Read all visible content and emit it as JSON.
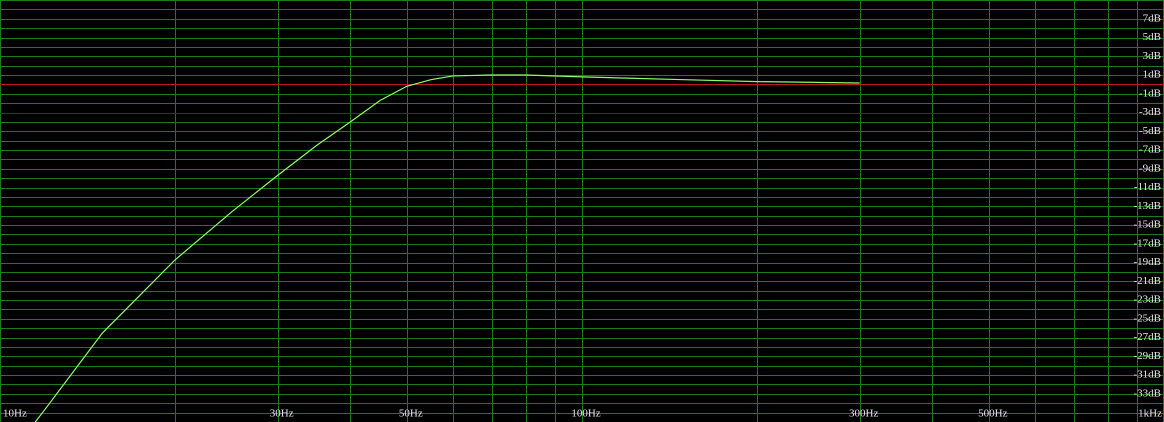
{
  "chart_data": {
    "type": "line",
    "xscale": "log",
    "xlim": [
      10,
      1000
    ],
    "ylim": [
      -36,
      9
    ],
    "xticks": [
      {
        "value": 10,
        "label": "10Hz"
      },
      {
        "value": 30,
        "label": "30Hz"
      },
      {
        "value": 50,
        "label": "50Hz"
      },
      {
        "value": 100,
        "label": "100Hz"
      },
      {
        "value": 300,
        "label": "300Hz"
      },
      {
        "value": 500,
        "label": "500Hz"
      },
      {
        "value": 1000,
        "label": "1kHz"
      }
    ],
    "minor_xticks": [
      20,
      40,
      60,
      70,
      80,
      90,
      200,
      400,
      600,
      700,
      800,
      900
    ],
    "yticks": [
      {
        "value": 7,
        "label": "7dB"
      },
      {
        "value": 5,
        "label": "5dB"
      },
      {
        "value": 3,
        "label": "3dB"
      },
      {
        "value": 1,
        "label": "1dB"
      },
      {
        "value": -1,
        "label": "-1dB"
      },
      {
        "value": -3,
        "label": "-3dB"
      },
      {
        "value": -5,
        "label": "-5dB"
      },
      {
        "value": -7,
        "label": "-7dB"
      },
      {
        "value": -9,
        "label": "-9dB"
      },
      {
        "value": -11,
        "label": "-11dB"
      },
      {
        "value": -13,
        "label": "-13dB"
      },
      {
        "value": -15,
        "label": "-15dB"
      },
      {
        "value": -17,
        "label": "-17dB"
      },
      {
        "value": -19,
        "label": "-19dB"
      },
      {
        "value": -21,
        "label": "-21dB"
      },
      {
        "value": -23,
        "label": "-23dB"
      },
      {
        "value": -25,
        "label": "-25dB"
      },
      {
        "value": -27,
        "label": "-27dB"
      },
      {
        "value": -29,
        "label": "-29dB"
      },
      {
        "value": -31,
        "label": "-31dB"
      },
      {
        "value": -33,
        "label": "-33dB"
      }
    ],
    "minor_yticks": [
      9,
      8,
      6,
      4,
      2,
      0,
      -2,
      -4,
      -6,
      -8,
      -10,
      -12,
      -14,
      -16,
      -18,
      -20,
      -22,
      -24,
      -26,
      -28,
      -30,
      -32,
      -34,
      -35,
      -36
    ],
    "grid": true,
    "grid_color": "#1e7a1e",
    "reference_lines": [
      {
        "value": 0,
        "color": "#c0142a"
      },
      {
        "value": -3,
        "color": "#6a0a78"
      }
    ],
    "x": [
      11.5,
      12,
      15,
      20,
      25,
      30,
      35,
      40,
      45,
      50,
      55,
      60,
      70,
      80,
      100,
      150,
      200,
      300
    ],
    "series": [
      {
        "color": "#88ff66",
        "values": [
          -36,
          -34.5,
          -26.5,
          -18.7,
          -13.6,
          -9.7,
          -6.5,
          -4.0,
          -1.7,
          -0.2,
          0.5,
          0.9,
          1.0,
          1.0,
          0.8,
          0.5,
          0.3,
          0.15
        ]
      }
    ]
  }
}
